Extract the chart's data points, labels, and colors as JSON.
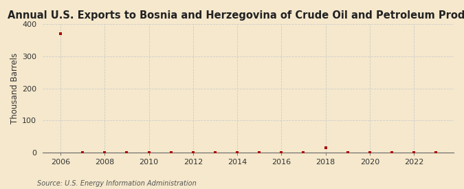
{
  "title": "Annual U.S. Exports to Bosnia and Herzegovina of Crude Oil and Petroleum Products",
  "ylabel": "Thousand Barrels",
  "source": "Source: U.S. Energy Information Administration",
  "years": [
    2006,
    2007,
    2008,
    2009,
    2010,
    2011,
    2012,
    2013,
    2014,
    2015,
    2016,
    2017,
    2018,
    2019,
    2020,
    2021,
    2022,
    2023
  ],
  "values": [
    370,
    0,
    0,
    0,
    0,
    0,
    0,
    0,
    0,
    0,
    0,
    0,
    15,
    0,
    0,
    0,
    0,
    0
  ],
  "marker_color": "#aa0000",
  "background_color": "#f5e8cc",
  "grid_color": "#cccccc",
  "xlim": [
    2005.2,
    2023.8
  ],
  "ylim": [
    0,
    400
  ],
  "yticks": [
    0,
    100,
    200,
    300,
    400
  ],
  "xticks": [
    2006,
    2008,
    2010,
    2012,
    2014,
    2016,
    2018,
    2020,
    2022
  ],
  "title_fontsize": 10.5,
  "label_fontsize": 8.5,
  "tick_fontsize": 8,
  "source_fontsize": 7
}
